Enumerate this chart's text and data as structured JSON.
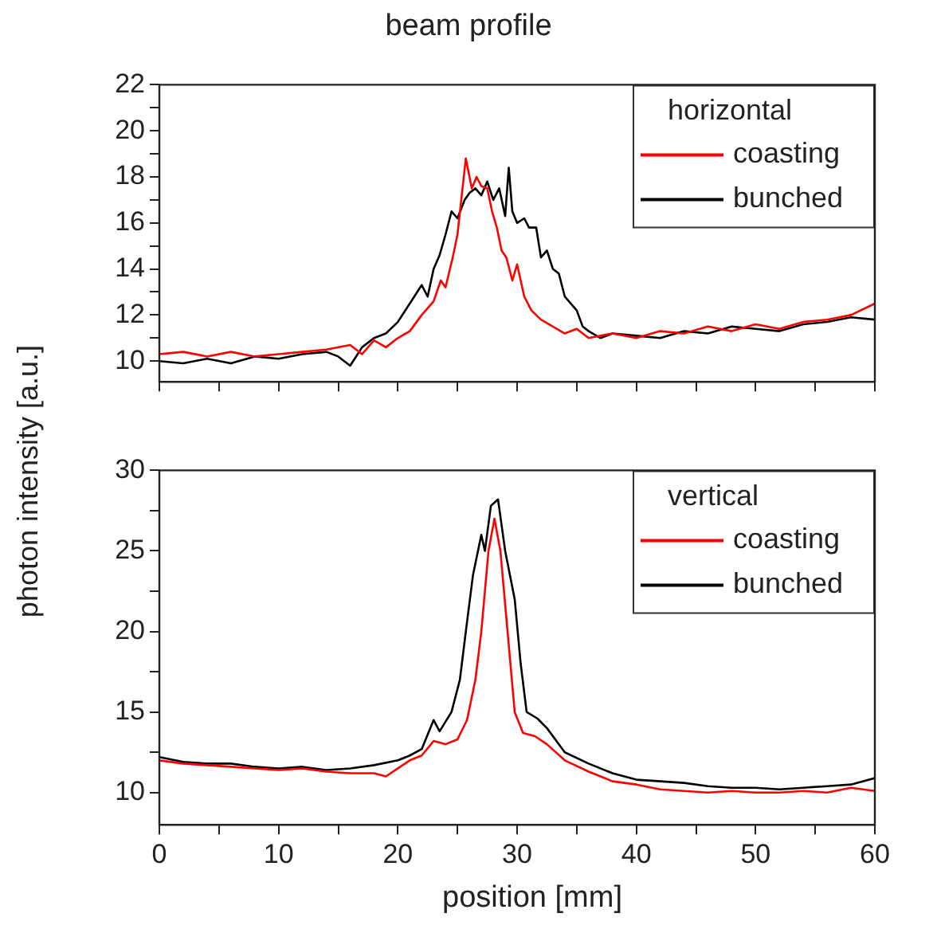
{
  "chart_data": [
    {
      "type": "line",
      "title": "beam profile",
      "ylabel": "photon intensity [a.u.]",
      "legend_title": "horizontal",
      "legend": "top right",
      "tick_labels": "y",
      "marker": "none",
      "line_style": "solid",
      "xlim": [
        0,
        60
      ],
      "xticks": [
        {
          "value": 0,
          "label": null
        },
        {
          "value": 5,
          "label": null
        },
        {
          "value": 10,
          "label": null
        },
        {
          "value": 15,
          "label": null
        },
        {
          "value": 20,
          "label": null
        },
        {
          "value": 25,
          "label": null
        },
        {
          "value": 30,
          "label": null
        },
        {
          "value": 35,
          "label": null
        },
        {
          "value": 40,
          "label": null
        },
        {
          "value": 45,
          "label": null
        },
        {
          "value": 50,
          "label": null
        },
        {
          "value": 55,
          "label": null
        },
        {
          "value": 60,
          "label": null
        }
      ],
      "ylim": [
        9.1,
        22
      ],
      "yticks": [
        10,
        {
          "value": 11,
          "label": null
        },
        12,
        {
          "value": 13,
          "label": null
        },
        14,
        {
          "value": 15,
          "label": null
        },
        16,
        {
          "value": 17,
          "label": null
        },
        18,
        {
          "value": 19,
          "label": null
        },
        20,
        {
          "value": 21,
          "label": null
        },
        22
      ],
      "series": [
        {
          "name": "coasting",
          "color": "#ff0000",
          "x": [
            0,
            2,
            4,
            6,
            8,
            10,
            12,
            14,
            16,
            17,
            18,
            19,
            20,
            21,
            22,
            23,
            23.6,
            24,
            24.6,
            25,
            25.7,
            26.2,
            26.6,
            27,
            27.5,
            27.9,
            28.3,
            28.7,
            29.1,
            29.6,
            30,
            30.6,
            31.2,
            32,
            33,
            34,
            35,
            36,
            38,
            40,
            42,
            44,
            46,
            48,
            50,
            52,
            54,
            56,
            58,
            60
          ],
          "values": [
            10.3,
            10.4,
            10.2,
            10.4,
            10.2,
            10.3,
            10.4,
            10.5,
            10.7,
            10.3,
            10.9,
            10.6,
            11.0,
            11.3,
            12.0,
            12.6,
            13.5,
            13.2,
            14.5,
            15.5,
            18.8,
            17.5,
            18.0,
            17.6,
            17.5,
            16.5,
            15.8,
            14.8,
            14.5,
            13.5,
            14.2,
            12.8,
            12.2,
            11.8,
            11.5,
            11.2,
            11.4,
            11.0,
            11.2,
            11.0,
            11.3,
            11.2,
            11.5,
            11.3,
            11.6,
            11.4,
            11.7,
            11.8,
            12.0,
            12.5
          ]
        },
        {
          "name": "bunched",
          "color": "#000000",
          "x": [
            0,
            2,
            4,
            6,
            8,
            10,
            12,
            14,
            15,
            16,
            17,
            18,
            19,
            20,
            21,
            22,
            22.5,
            23,
            23.5,
            24,
            24.5,
            25,
            25.6,
            26,
            26.5,
            27,
            27.5,
            28,
            28.5,
            29,
            29.3,
            29.6,
            30,
            30.6,
            31,
            31.6,
            32,
            32.5,
            33,
            33.5,
            34,
            34.5,
            35,
            35.5,
            36,
            37,
            38,
            40,
            42,
            44,
            46,
            48,
            50,
            52,
            54,
            56,
            58,
            60
          ],
          "values": [
            10.0,
            9.9,
            10.1,
            9.9,
            10.2,
            10.1,
            10.3,
            10.4,
            10.2,
            9.8,
            10.6,
            11.0,
            11.2,
            11.7,
            12.5,
            13.3,
            12.8,
            14.0,
            14.6,
            15.5,
            16.5,
            16.2,
            17.0,
            17.3,
            17.5,
            17.2,
            17.8,
            17.0,
            17.5,
            16.3,
            18.4,
            16.5,
            16.0,
            16.2,
            15.8,
            15.8,
            14.5,
            14.8,
            14.0,
            13.8,
            12.8,
            12.5,
            12.2,
            11.5,
            11.3,
            11.0,
            11.2,
            11.1,
            11.0,
            11.3,
            11.2,
            11.5,
            11.4,
            11.3,
            11.6,
            11.7,
            11.9,
            11.8
          ]
        }
      ]
    },
    {
      "type": "line",
      "xlabel": "position [mm]",
      "legend_title": "vertical",
      "legend": "top right",
      "marker": "none",
      "line_style": "solid",
      "xlim": [
        0,
        60
      ],
      "xticks": [
        0,
        {
          "value": 5,
          "label": null
        },
        10,
        {
          "value": 15,
          "label": null
        },
        20,
        {
          "value": 25,
          "label": null
        },
        30,
        {
          "value": 35,
          "label": null
        },
        40,
        {
          "value": 45,
          "label": null
        },
        50,
        {
          "value": 55,
          "label": null
        },
        60
      ],
      "ylim": [
        8,
        30
      ],
      "yticks": [
        10,
        {
          "value": 12.5,
          "label": null
        },
        15,
        {
          "value": 17.5,
          "label": null
        },
        20,
        {
          "value": 22.5,
          "label": null
        },
        25,
        {
          "value": 27.5,
          "label": null
        },
        30
      ],
      "series": [
        {
          "name": "coasting",
          "color": "#ff0000",
          "x": [
            0,
            2,
            4,
            6,
            8,
            10,
            12,
            14,
            16,
            18,
            19,
            20,
            21,
            22,
            23,
            24,
            25,
            25.8,
            26.5,
            27,
            27.6,
            28.1,
            28.6,
            29.2,
            29.8,
            30.5,
            31.5,
            32.5,
            34,
            36,
            38,
            40,
            42,
            44,
            46,
            48,
            50,
            52,
            54,
            56,
            58,
            60
          ],
          "values": [
            12.0,
            11.8,
            11.7,
            11.6,
            11.5,
            11.4,
            11.5,
            11.3,
            11.2,
            11.2,
            11.0,
            11.5,
            12.0,
            12.3,
            13.2,
            13.0,
            13.3,
            14.5,
            17.0,
            20.0,
            25.0,
            27.0,
            25.0,
            20.0,
            15.0,
            13.7,
            13.5,
            13.0,
            12.0,
            11.3,
            10.7,
            10.5,
            10.2,
            10.1,
            10.0,
            10.1,
            10.0,
            10.0,
            10.1,
            10.0,
            10.3,
            10.1
          ]
        },
        {
          "name": "bunched",
          "color": "#000000",
          "x": [
            0,
            2,
            4,
            6,
            8,
            10,
            12,
            14,
            16,
            18,
            20,
            21,
            22,
            23,
            23.5,
            24.5,
            25.2,
            25.7,
            26.3,
            27,
            27.3,
            27.8,
            28.4,
            29,
            29.8,
            30.3,
            30.8,
            31.7,
            32.5,
            34,
            36,
            38,
            40,
            42,
            44,
            46,
            48,
            50,
            52,
            54,
            56,
            58,
            60
          ],
          "values": [
            12.2,
            11.9,
            11.8,
            11.8,
            11.6,
            11.5,
            11.6,
            11.4,
            11.5,
            11.7,
            12.0,
            12.3,
            12.7,
            14.5,
            13.8,
            15.0,
            17.0,
            20.0,
            23.5,
            26.0,
            25.0,
            27.8,
            28.2,
            25.0,
            22.0,
            18.0,
            15.0,
            14.6,
            14.0,
            12.5,
            11.8,
            11.2,
            10.8,
            10.7,
            10.6,
            10.4,
            10.3,
            10.3,
            10.2,
            10.3,
            10.4,
            10.5,
            10.9
          ]
        }
      ]
    }
  ]
}
